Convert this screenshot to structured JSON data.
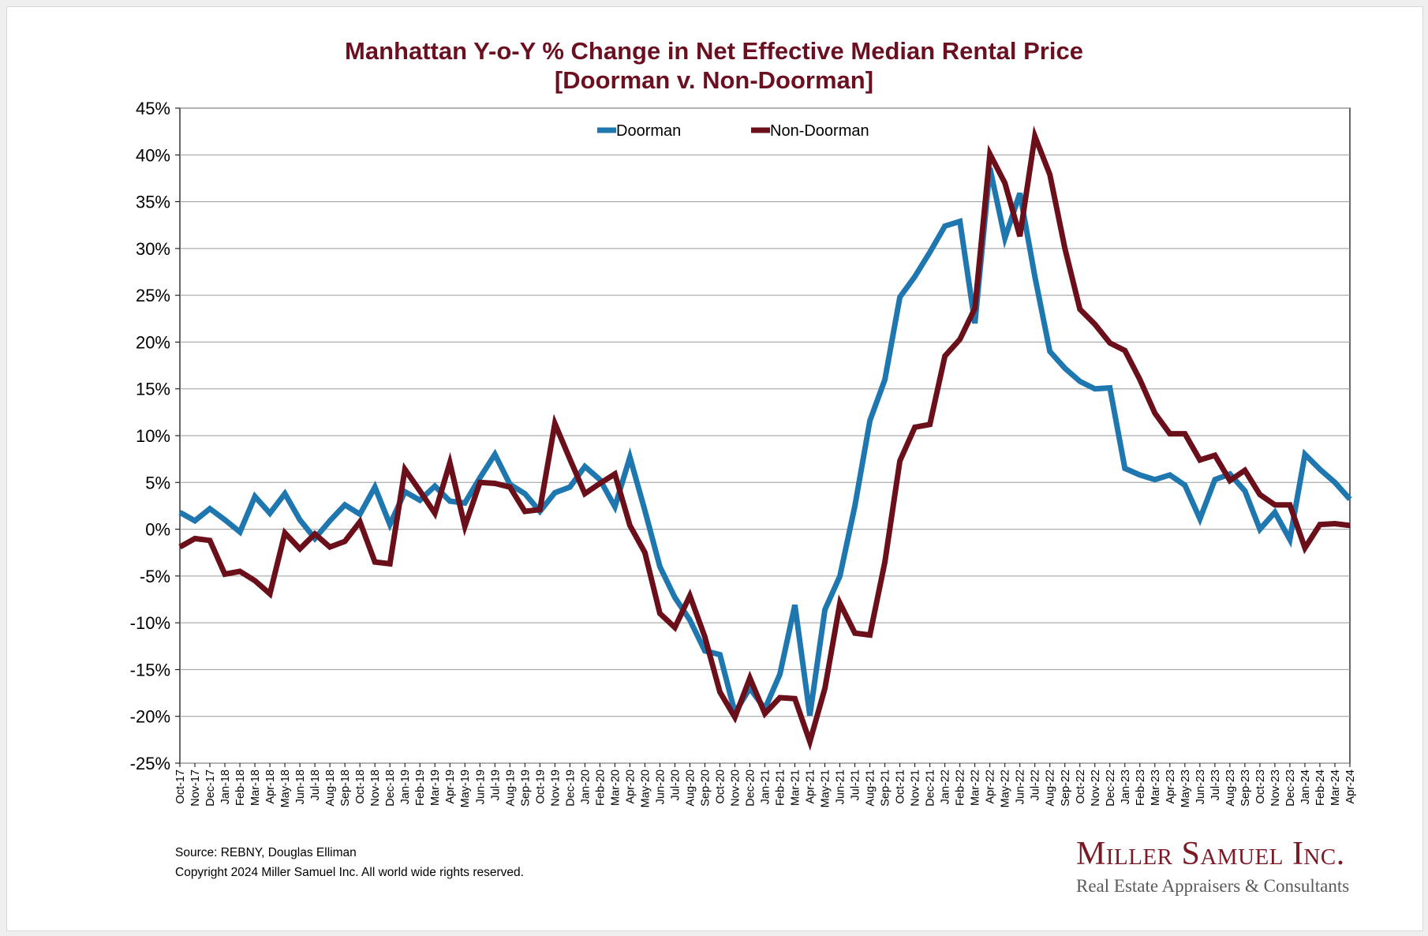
{
  "title_line1": "Manhattan Y-o-Y % Change in Net Effective Median Rental Price",
  "title_line2": "[Doorman v. Non-Doorman]",
  "footer": {
    "source": "Source: REBNY, Douglas Elliman",
    "copyright": "Copyright 2024 Miller Samuel Inc.  All world wide rights reserved."
  },
  "logo": {
    "name": "Miller Samuel Inc.",
    "tagline": "Real Estate Appraisers & Consultants"
  },
  "colors": {
    "doorman": "#1f77b0",
    "non_doorman": "#6b0f1a",
    "title": "#6b1020",
    "grid": "#9a9a9a"
  },
  "chart_data": {
    "type": "line",
    "ylim": [
      -25,
      45
    ],
    "y_ticks": [
      45,
      40,
      35,
      30,
      25,
      20,
      15,
      10,
      5,
      0,
      -5,
      -10,
      -15,
      -20,
      -25
    ],
    "y_tick_labels": [
      "45%",
      "40%",
      "35%",
      "30%",
      "25%",
      "20%",
      "15%",
      "10%",
      "5%",
      "0%",
      "-5%",
      "-10%",
      "-15%",
      "-20%",
      "-25%"
    ],
    "grid": true,
    "legend_position": "top-center",
    "categories": [
      "Oct-17",
      "Nov-17",
      "Dec-17",
      "Jan-18",
      "Feb-18",
      "Mar-18",
      "Apr-18",
      "May-18",
      "Jun-18",
      "Jul-18",
      "Aug-18",
      "Sep-18",
      "Oct-18",
      "Nov-18",
      "Dec-18",
      "Jan-19",
      "Feb-19",
      "Mar-19",
      "Apr-19",
      "May-19",
      "Jun-19",
      "Jul-19",
      "Aug-19",
      "Sep-19",
      "Oct-19",
      "Nov-19",
      "Dec-19",
      "Jan-20",
      "Feb-20",
      "Mar-20",
      "Apr-20",
      "May-20",
      "Jun-20",
      "Jul-20",
      "Aug-20",
      "Sep-20",
      "Oct-20",
      "Nov-20",
      "Dec-20",
      "Jan-21",
      "Feb-21",
      "Mar-21",
      "Apr-21",
      "May-21",
      "Jun-21",
      "Jul-21",
      "Aug-21",
      "Sep-21",
      "Oct-21",
      "Nov-21",
      "Dec-21",
      "Jan-22",
      "Feb-22",
      "Mar-22",
      "Apr-22",
      "May-22",
      "Jun-22",
      "Jul-22",
      "Aug-22",
      "Sep-22",
      "Oct-22",
      "Nov-22",
      "Dec-22",
      "Jan-23",
      "Feb-23",
      "Mar-23",
      "Apr-23",
      "May-23",
      "Jun-23",
      "Jul-23",
      "Aug-23",
      "Sep-23",
      "Oct-23",
      "Nov-23",
      "Dec-23",
      "Jan-24",
      "Feb-24",
      "Mar-24",
      "Apr-24"
    ],
    "series": [
      {
        "name": "Doorman",
        "values": [
          1.8,
          0.9,
          2.2,
          1.0,
          -0.3,
          3.5,
          1.7,
          3.8,
          1.0,
          -1.0,
          0.9,
          2.6,
          1.6,
          4.5,
          0.5,
          4.0,
          3.1,
          4.6,
          3.0,
          2.8,
          5.5,
          8.0,
          4.8,
          3.8,
          1.9,
          3.9,
          4.5,
          6.7,
          5.3,
          2.4,
          7.7,
          2.0,
          -4.0,
          -7.3,
          -9.7,
          -13.0,
          -13.4,
          -19.6,
          -17.0,
          -19.2,
          -15.5,
          -8.1,
          -19.9,
          -8.6,
          -5.0,
          2.5,
          11.6,
          16.0,
          24.8,
          27.0,
          29.6,
          32.4,
          32.9,
          22.0,
          38.6,
          31.1,
          35.9,
          27.0,
          19.0,
          17.2,
          15.8,
          15.0,
          15.1,
          6.5,
          5.8,
          5.3,
          5.8,
          4.7,
          1.1,
          5.3,
          5.9,
          4.1,
          0.0,
          1.8,
          -1.1,
          8.0,
          6.4,
          5.0,
          3.2
        ]
      },
      {
        "name": "Non-Doorman",
        "values": [
          -1.9,
          -1.0,
          -1.2,
          -4.8,
          -4.5,
          -5.5,
          -6.9,
          -0.4,
          -2.1,
          -0.5,
          -1.9,
          -1.3,
          0.8,
          -3.5,
          -3.7,
          6.4,
          4.1,
          1.7,
          7.1,
          0.3,
          5.0,
          4.9,
          4.5,
          1.9,
          2.1,
          11.3,
          7.5,
          3.8,
          4.9,
          5.9,
          0.4,
          -2.5,
          -9.0,
          -10.5,
          -7.1,
          -11.5,
          -17.4,
          -20.1,
          -15.9,
          -19.7,
          -18.0,
          -18.1,
          -22.7,
          -17.0,
          -7.9,
          -11.1,
          -11.3,
          -3.5,
          7.3,
          10.9,
          11.2,
          18.5,
          20.3,
          23.6,
          40.1,
          37.0,
          31.3,
          42.0,
          37.9,
          30.0,
          23.5,
          21.9,
          19.9,
          19.1,
          16.0,
          12.4,
          10.2,
          10.2,
          7.4,
          7.9,
          5.2,
          6.3,
          3.7,
          2.6,
          2.6,
          -2.0,
          0.5,
          0.6,
          0.4
        ]
      }
    ]
  }
}
